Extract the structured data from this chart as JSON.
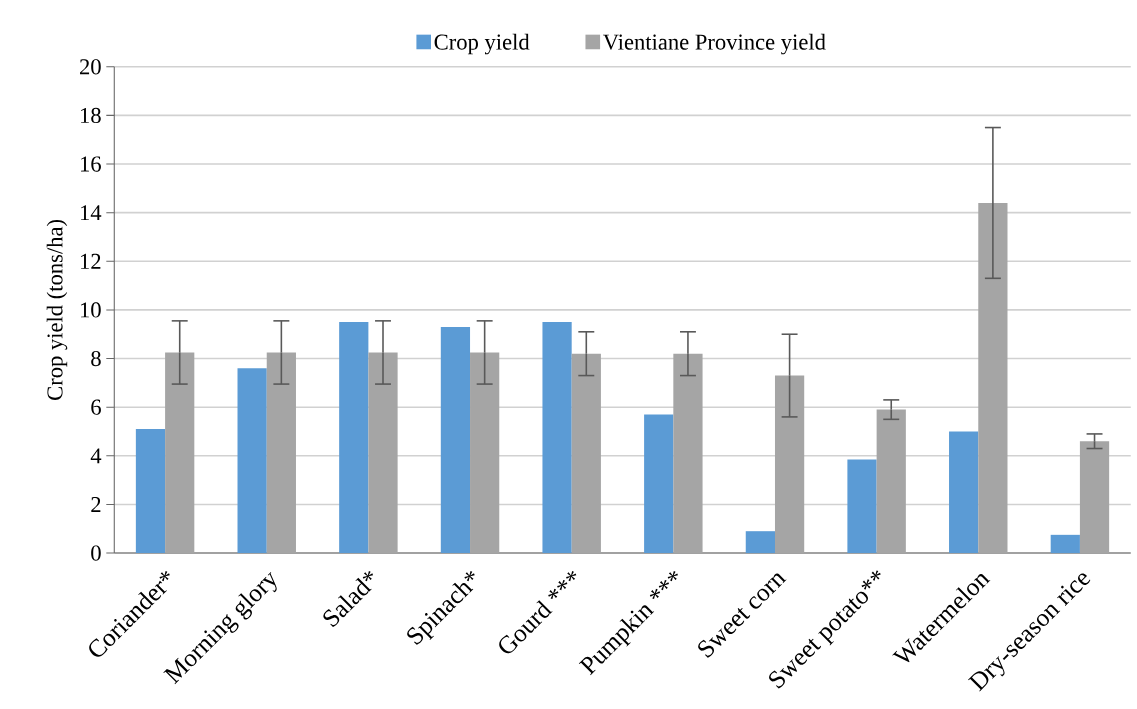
{
  "chart_data": {
    "type": "bar",
    "ylabel": "Crop yield (tons/ha)",
    "categories": [
      "Coriander*",
      "Morning glory",
      "Salad*",
      "Spinach*",
      "Gourd ***",
      "Pumpkin ***",
      "Sweet corn",
      "Sweet potato**",
      "Watermelon",
      "Dry-season rice"
    ],
    "series": [
      {
        "name": "Crop yield",
        "color": "#5b9bd5",
        "values": [
          5.1,
          7.6,
          9.5,
          9.3,
          9.5,
          5.7,
          0.9,
          3.85,
          5.0,
          0.75
        ]
      },
      {
        "name": "Vientiane Province yield",
        "color": "#a5a5a5",
        "values": [
          8.25,
          8.25,
          8.25,
          8.25,
          8.2,
          8.2,
          7.3,
          5.9,
          14.4,
          4.6
        ],
        "errors": [
          1.3,
          1.3,
          1.3,
          1.3,
          0.9,
          0.9,
          1.7,
          0.4,
          3.1,
          0.3
        ]
      }
    ],
    "ylim": [
      0,
      20
    ],
    "yticks": [
      0,
      2,
      4,
      6,
      8,
      10,
      12,
      14,
      16,
      18,
      20
    ],
    "grid": "y",
    "legend": "top"
  }
}
